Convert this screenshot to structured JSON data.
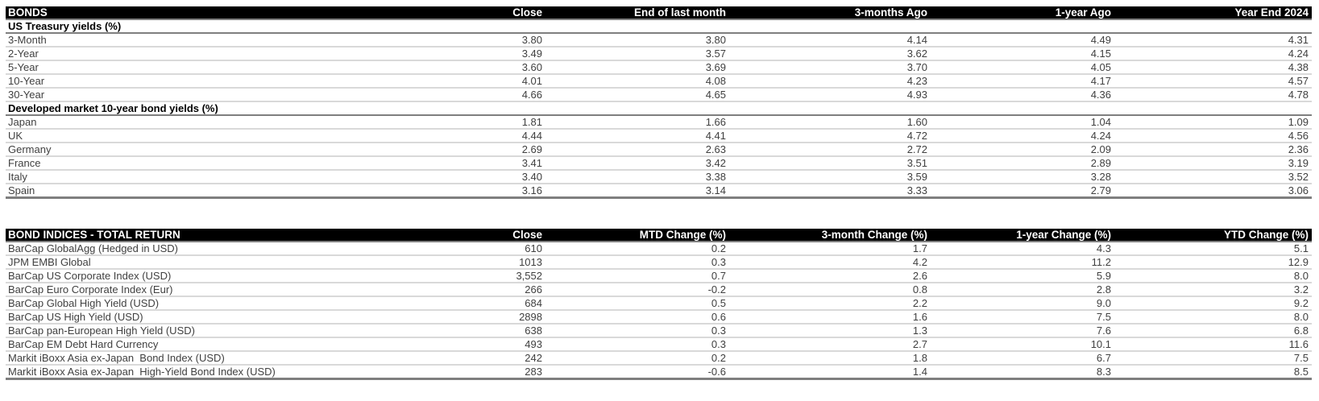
{
  "bonds_table": {
    "title": "BONDS",
    "columns": [
      "Close",
      "End of last month",
      "3-months Ago",
      "1-year Ago",
      "Year End 2024"
    ],
    "sections": [
      {
        "header": "US Treasury yields (%)",
        "rows": [
          {
            "label": "3-Month",
            "values": [
              "3.80",
              "3.80",
              "4.14",
              "4.49",
              "4.31"
            ]
          },
          {
            "label": "2-Year",
            "values": [
              "3.49",
              "3.57",
              "3.62",
              "4.15",
              "4.24"
            ]
          },
          {
            "label": "5-Year",
            "values": [
              "3.60",
              "3.69",
              "3.70",
              "4.05",
              "4.38"
            ]
          },
          {
            "label": "10-Year",
            "values": [
              "4.01",
              "4.08",
              "4.23",
              "4.17",
              "4.57"
            ]
          },
          {
            "label": "30-Year",
            "values": [
              "4.66",
              "4.65",
              "4.93",
              "4.36",
              "4.78"
            ]
          }
        ]
      },
      {
        "header": "Developed market 10-year bond yields (%)",
        "rows": [
          {
            "label": "Japan",
            "values": [
              "1.81",
              "1.66",
              "1.60",
              "1.04",
              "1.09"
            ]
          },
          {
            "label": "UK",
            "values": [
              "4.44",
              "4.41",
              "4.72",
              "4.24",
              "4.56"
            ]
          },
          {
            "label": "Germany",
            "values": [
              "2.69",
              "2.63",
              "2.72",
              "2.09",
              "2.36"
            ]
          },
          {
            "label": "France",
            "values": [
              "3.41",
              "3.42",
              "3.51",
              "2.89",
              "3.19"
            ]
          },
          {
            "label": "Italy",
            "values": [
              "3.40",
              "3.38",
              "3.59",
              "3.28",
              "3.52"
            ]
          },
          {
            "label": "Spain",
            "values": [
              "3.16",
              "3.14",
              "3.33",
              "2.79",
              "3.06"
            ]
          }
        ]
      }
    ]
  },
  "indices_table": {
    "title": "BOND INDICES - TOTAL RETURN",
    "columns": [
      "Close",
      "MTD Change (%)",
      "3-month Change (%)",
      "1-year Change (%)",
      "YTD Change (%)"
    ],
    "rows": [
      {
        "label": "BarCap GlobalAgg (Hedged in USD)",
        "values": [
          "610",
          "0.2",
          "1.7",
          "4.3",
          "5.1"
        ]
      },
      {
        "label": "JPM EMBI Global",
        "values": [
          "1013",
          "0.3",
          "4.2",
          "11.2",
          "12.9"
        ]
      },
      {
        "label": "BarCap US Corporate Index (USD)",
        "values": [
          "3,552",
          "0.7",
          "2.6",
          "5.9",
          "8.0"
        ]
      },
      {
        "label": "BarCap Euro Corporate Index (Eur)",
        "values": [
          "266",
          "-0.2",
          "0.8",
          "2.8",
          "3.2"
        ]
      },
      {
        "label": "BarCap Global High Yield (USD)",
        "values": [
          "684",
          "0.5",
          "2.2",
          "9.0",
          "9.2"
        ]
      },
      {
        "label": "BarCap US High Yield (USD)",
        "values": [
          "2898",
          "0.6",
          "1.6",
          "7.5",
          "8.0"
        ]
      },
      {
        "label": "BarCap pan-European High Yield (USD)",
        "values": [
          "638",
          "0.3",
          "1.3",
          "7.6",
          "6.8"
        ]
      },
      {
        "label": "BarCap EM Debt Hard Currency",
        "values": [
          "493",
          "0.3",
          "2.7",
          "10.1",
          "11.6"
        ]
      },
      {
        "label": "Markit iBoxx Asia ex-Japan  Bond Index (USD)",
        "values": [
          "242",
          "0.2",
          "1.8",
          "6.7",
          "7.5"
        ]
      },
      {
        "label": "Markit iBoxx Asia ex-Japan  High-Yield Bond Index (USD)",
        "values": [
          "283",
          "-0.6",
          "1.4",
          "8.3",
          "8.5"
        ]
      }
    ]
  }
}
